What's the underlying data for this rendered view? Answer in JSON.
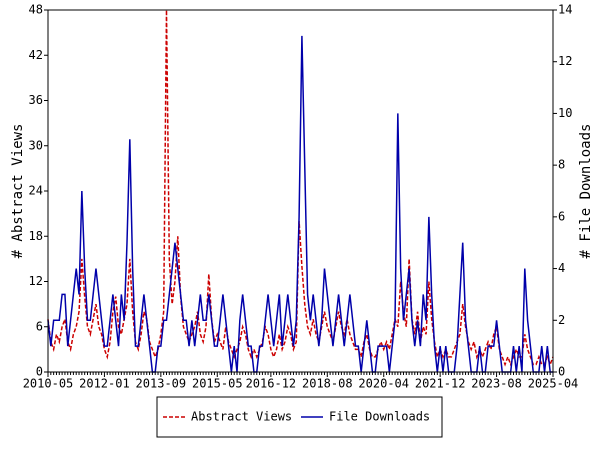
{
  "chart_data": {
    "type": "line",
    "ylabel": "# Abstract Views",
    "y2label": "# File Downloads",
    "categories": [
      "2010-05",
      null,
      null,
      null,
      null,
      null,
      null,
      null,
      null,
      null,
      null,
      null,
      null,
      null,
      null,
      null,
      null,
      null,
      null,
      null,
      "2012-01",
      null,
      null,
      null,
      null,
      null,
      null,
      null,
      null,
      null,
      null,
      null,
      null,
      null,
      null,
      null,
      null,
      null,
      null,
      null,
      "2013-09",
      null,
      null,
      null,
      null,
      null,
      null,
      null,
      null,
      null,
      null,
      null,
      null,
      null,
      null,
      null,
      null,
      null,
      null,
      null,
      "2015-05",
      null,
      null,
      null,
      null,
      null,
      null,
      null,
      null,
      null,
      null,
      null,
      null,
      null,
      null,
      null,
      null,
      null,
      null,
      "2016-12",
      null,
      null,
      null,
      null,
      null,
      null,
      null,
      null,
      null,
      null,
      null,
      null,
      null,
      null,
      null,
      null,
      null,
      null,
      null,
      "2018-08",
      null,
      null,
      null,
      null,
      null,
      null,
      null,
      null,
      null,
      null,
      null,
      null,
      null,
      null,
      null,
      null,
      null,
      null,
      null,
      "2020-04",
      null,
      null,
      null,
      null,
      null,
      null,
      null,
      null,
      null,
      null,
      null,
      null,
      null,
      null,
      null,
      null,
      null,
      null,
      null,
      "2021-12",
      null,
      null,
      null,
      null,
      null,
      null,
      null,
      null,
      null,
      null,
      null,
      null,
      null,
      null,
      null,
      null,
      null,
      null,
      null,
      "2023-08",
      null,
      null,
      null,
      null,
      null,
      null,
      null,
      null,
      null,
      null,
      null,
      null,
      null,
      null,
      null,
      null,
      null,
      null,
      null,
      "2025-04"
    ],
    "series": [
      {
        "name": "Abstract Views",
        "color": "#cc0000",
        "line_style": "dashed",
        "axis": "y",
        "values": [
          7,
          4,
          3,
          5,
          4,
          6,
          7,
          4,
          3,
          5,
          6,
          8,
          15,
          10,
          6,
          5,
          7,
          9,
          6,
          5,
          3,
          2,
          4,
          8,
          10,
          6,
          5,
          7,
          9,
          15,
          8,
          4,
          3,
          5,
          8,
          7,
          4,
          3,
          2,
          3,
          5,
          8,
          48,
          15,
          9,
          12,
          18,
          10,
          6,
          5,
          4,
          5,
          6,
          8,
          5,
          4,
          6,
          13,
          7,
          4,
          5,
          4,
          3,
          6,
          4,
          3,
          2,
          3,
          4,
          6,
          5,
          3,
          2,
          3,
          2,
          3,
          4,
          6,
          5,
          3,
          2,
          3,
          5,
          3,
          4,
          6,
          5,
          3,
          4,
          20,
          14,
          9,
          6,
          5,
          7,
          5,
          4,
          6,
          8,
          6,
          5,
          4,
          6,
          8,
          6,
          5,
          7,
          5,
          4,
          3,
          3,
          2,
          4,
          5,
          3,
          2,
          2,
          3,
          4,
          3,
          4,
          3,
          5,
          7,
          6,
          12,
          8,
          6,
          15,
          7,
          5,
          8,
          4,
          6,
          5,
          12,
          7,
          4,
          2,
          3,
          2,
          3,
          2,
          2,
          3,
          4,
          5,
          9,
          6,
          4,
          3,
          4,
          2,
          3,
          2,
          3,
          4,
          3,
          5,
          6,
          3,
          2,
          1,
          2,
          1,
          2,
          3,
          2,
          2,
          5,
          3,
          2,
          1,
          1,
          2,
          1,
          1,
          2,
          1,
          2
        ]
      },
      {
        "name": "File Downloads",
        "color": "#0000aa",
        "line_style": "solid",
        "axis": "y2",
        "values": [
          2,
          1,
          2,
          2,
          2,
          3,
          3,
          1,
          2,
          3,
          4,
          3,
          7,
          4,
          2,
          2,
          3,
          4,
          3,
          2,
          1,
          1,
          2,
          3,
          2,
          1,
          3,
          2,
          5,
          9,
          4,
          1,
          1,
          2,
          3,
          2,
          1,
          0,
          0,
          1,
          1,
          2,
          2,
          3,
          4,
          5,
          4,
          3,
          2,
          2,
          1,
          2,
          1,
          2,
          3,
          2,
          2,
          3,
          2,
          1,
          1,
          2,
          3,
          2,
          1,
          0,
          1,
          0,
          2,
          3,
          2,
          1,
          1,
          0,
          0,
          1,
          1,
          2,
          3,
          2,
          1,
          2,
          3,
          1,
          2,
          3,
          2,
          1,
          2,
          6,
          13,
          8,
          3,
          2,
          3,
          2,
          1,
          2,
          4,
          3,
          2,
          1,
          2,
          3,
          2,
          1,
          2,
          3,
          2,
          1,
          1,
          0,
          1,
          2,
          1,
          0,
          0,
          1,
          1,
          1,
          1,
          0,
          1,
          2,
          10,
          4,
          2,
          3,
          4,
          2,
          1,
          2,
          1,
          3,
          2,
          6,
          3,
          1,
          0,
          1,
          0,
          1,
          0,
          0,
          0,
          1,
          3,
          5,
          2,
          1,
          0,
          0,
          0,
          1,
          0,
          0,
          1,
          1,
          1,
          2,
          1,
          0,
          0,
          0,
          0,
          1,
          0,
          1,
          0,
          4,
          2,
          1,
          0,
          0,
          0,
          1,
          0,
          1,
          0,
          0
        ]
      }
    ],
    "ylim": [
      0,
      48
    ],
    "yticks": [
      0,
      6,
      12,
      18,
      24,
      30,
      36,
      42,
      48
    ],
    "y2lim": [
      0,
      14
    ],
    "y2ticks": [
      0,
      2,
      4,
      6,
      8,
      10,
      12,
      14
    ],
    "legend": "bottom"
  }
}
